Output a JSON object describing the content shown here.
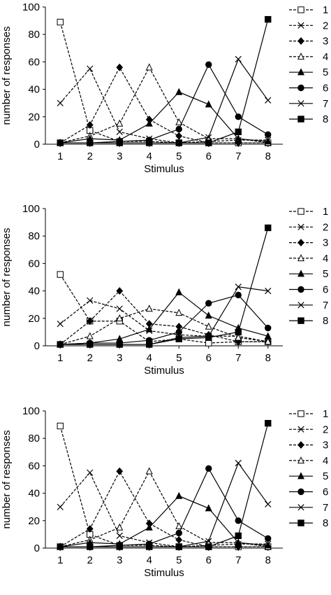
{
  "chart_data": [
    {
      "type": "line",
      "title": "",
      "xlabel": "Stimulus",
      "ylabel": "number of responses",
      "x": [
        1,
        2,
        3,
        4,
        5,
        6,
        7,
        8
      ],
      "ylim": [
        0,
        100
      ],
      "yticks": [
        0,
        20,
        40,
        60,
        80,
        100
      ],
      "legend_position": "right",
      "series": [
        {
          "name": "1",
          "marker": "square-open",
          "dashed": true,
          "values": [
            89,
            10,
            2,
            2,
            1,
            1,
            1,
            1
          ]
        },
        {
          "name": "2",
          "marker": "x",
          "dashed": true,
          "values": [
            30,
            55,
            9,
            4,
            1,
            2,
            3,
            3
          ]
        },
        {
          "name": "3",
          "marker": "diamond",
          "dashed": true,
          "values": [
            1,
            14,
            56,
            18,
            6,
            1,
            1,
            1
          ]
        },
        {
          "name": "4",
          "marker": "triangle-open",
          "dashed": true,
          "values": [
            1,
            6,
            15,
            56,
            16,
            4,
            4,
            1
          ]
        },
        {
          "name": "5",
          "marker": "triangle",
          "dashed": false,
          "values": [
            1,
            4,
            3,
            15,
            38,
            29,
            4,
            2
          ]
        },
        {
          "name": "6",
          "marker": "circle",
          "dashed": false,
          "values": [
            1,
            1,
            2,
            3,
            11,
            58,
            20,
            7
          ]
        },
        {
          "name": "7",
          "marker": "x",
          "dashed": false,
          "values": [
            1,
            1,
            1,
            1,
            1,
            5,
            62,
            32
          ]
        },
        {
          "name": "8",
          "marker": "square",
          "dashed": false,
          "values": [
            1,
            1,
            1,
            1,
            1,
            1,
            9,
            91
          ]
        }
      ]
    },
    {
      "type": "line",
      "title": "",
      "xlabel": "Stimulus",
      "ylabel": "number of responses",
      "x": [
        1,
        2,
        3,
        4,
        5,
        6,
        7,
        8
      ],
      "ylim": [
        0,
        100
      ],
      "yticks": [
        0,
        20,
        40,
        60,
        80,
        100
      ],
      "legend_position": "right",
      "series": [
        {
          "name": "1",
          "marker": "square-open",
          "dashed": true,
          "values": [
            52,
            18,
            18,
            3,
            5,
            2,
            3,
            3
          ]
        },
        {
          "name": "2",
          "marker": "x",
          "dashed": true,
          "values": [
            16,
            33,
            27,
            11,
            8,
            7,
            7,
            3
          ]
        },
        {
          "name": "3",
          "marker": "diamond",
          "dashed": true,
          "values": [
            1,
            18,
            40,
            16,
            14,
            8,
            3,
            3
          ]
        },
        {
          "name": "4",
          "marker": "triangle-open",
          "dashed": true,
          "values": [
            1,
            7,
            20,
            27,
            24,
            14,
            6,
            3
          ]
        },
        {
          "name": "5",
          "marker": "triangle",
          "dashed": false,
          "values": [
            1,
            2,
            5,
            12,
            39,
            22,
            13,
            7
          ]
        },
        {
          "name": "6",
          "marker": "circle",
          "dashed": false,
          "values": [
            1,
            2,
            2,
            4,
            10,
            31,
            37,
            13
          ]
        },
        {
          "name": "7",
          "marker": "x",
          "dashed": false,
          "values": [
            1,
            1,
            1,
            1,
            6,
            7,
            43,
            40
          ]
        },
        {
          "name": "8",
          "marker": "square",
          "dashed": false,
          "values": [
            1,
            1,
            1,
            1,
            5,
            6,
            10,
            86
          ]
        }
      ]
    },
    {
      "type": "line",
      "title": "",
      "xlabel": "Stimulus",
      "ylabel": "number of responses",
      "x": [
        1,
        2,
        3,
        4,
        5,
        6,
        7,
        8
      ],
      "ylim": [
        0,
        100
      ],
      "yticks": [
        0,
        20,
        40,
        60,
        80,
        100
      ],
      "legend_position": "right",
      "series": [
        {
          "name": "1",
          "marker": "square-open",
          "dashed": true,
          "values": [
            89,
            10,
            2,
            2,
            1,
            1,
            1,
            1
          ]
        },
        {
          "name": "2",
          "marker": "x",
          "dashed": true,
          "values": [
            30,
            55,
            9,
            4,
            1,
            2,
            3,
            3
          ]
        },
        {
          "name": "3",
          "marker": "diamond",
          "dashed": true,
          "values": [
            1,
            14,
            56,
            18,
            6,
            1,
            1,
            1
          ]
        },
        {
          "name": "4",
          "marker": "triangle-open",
          "dashed": true,
          "values": [
            1,
            6,
            15,
            56,
            16,
            4,
            4,
            1
          ]
        },
        {
          "name": "5",
          "marker": "triangle",
          "dashed": false,
          "values": [
            1,
            4,
            3,
            15,
            38,
            29,
            4,
            2
          ]
        },
        {
          "name": "6",
          "marker": "circle",
          "dashed": false,
          "values": [
            1,
            1,
            2,
            3,
            11,
            58,
            20,
            7
          ]
        },
        {
          "name": "7",
          "marker": "x",
          "dashed": false,
          "values": [
            1,
            1,
            1,
            1,
            1,
            5,
            62,
            32
          ]
        },
        {
          "name": "8",
          "marker": "square",
          "dashed": false,
          "values": [
            1,
            1,
            1,
            1,
            1,
            1,
            9,
            91
          ]
        }
      ]
    }
  ]
}
